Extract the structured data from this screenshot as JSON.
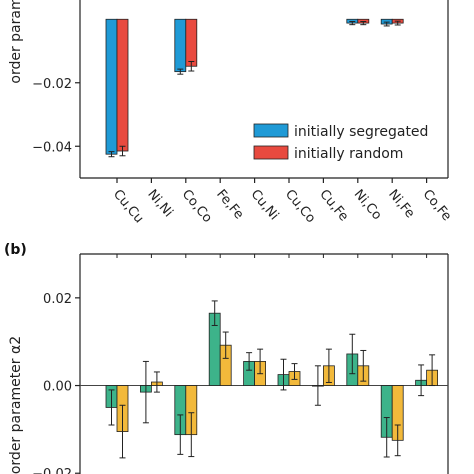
{
  "colors": {
    "segregated": "#1f9ad6",
    "random": "#e84a3f",
    "teal": "#3db38a",
    "orange": "#f2b93b",
    "axis": "#222222"
  },
  "chart_data": [
    {
      "type": "bar",
      "panel": "",
      "categories": [
        "Cu,Cu",
        "Ni,Ni",
        "Co,Co",
        "Fe,Fe",
        "Cu,Ni",
        "Cu,Co",
        "Cu,Fe",
        "Ni,Co",
        "Ni,Fe",
        "Co,Fe"
      ],
      "ylabel": "order param",
      "ylim": [
        -0.05,
        0.013
      ],
      "yticks": [
        -0.04,
        -0.02
      ],
      "ytick_labels": [
        "−0.04",
        "−0.02"
      ],
      "series": [
        {
          "name": "initially segregated",
          "color_key": "segregated",
          "values": [
            -0.0425,
            null,
            -0.0165,
            null,
            null,
            null,
            null,
            -0.0012,
            -0.0015,
            null
          ],
          "errors": [
            0.0008,
            null,
            0.0008,
            null,
            null,
            null,
            null,
            0.0005,
            0.0006,
            null
          ]
        },
        {
          "name": "initially random",
          "color_key": "random",
          "values": [
            -0.0415,
            null,
            -0.0148,
            null,
            null,
            null,
            null,
            -0.0012,
            -0.0012,
            null
          ],
          "errors": [
            0.0015,
            null,
            0.0015,
            null,
            null,
            null,
            null,
            0.0005,
            0.0006,
            null
          ]
        }
      ],
      "legend": "bottom-right"
    },
    {
      "type": "bar",
      "panel": "(b)",
      "categories": [
        "Cu,Cu",
        "Ni,Ni",
        "Co,Co",
        "Fe,Fe",
        "Cu,Ni",
        "Cu,Co",
        "Cu,Fe",
        "Ni,Co",
        "Ni,Fe",
        "Co,Fe"
      ],
      "ylabel": "order parameter α2",
      "ylim": [
        -0.022,
        0.03
      ],
      "yticks": [
        0.02,
        0.0,
        -0.02
      ],
      "ytick_labels": [
        "0.02",
        "0.00",
        "−0.02"
      ],
      "series": [
        {
          "color_key": "teal",
          "values": [
            -0.005,
            -0.0015,
            -0.0112,
            0.0165,
            0.0055,
            0.0025,
            0.0,
            0.0072,
            -0.0118,
            0.0012
          ],
          "errors": [
            0.004,
            0.007,
            0.0045,
            0.0028,
            0.002,
            0.0035,
            0.0045,
            0.0045,
            0.0045,
            0.0035
          ]
        },
        {
          "color_key": "orange",
          "values": [
            -0.0105,
            0.0008,
            -0.0112,
            0.0092,
            0.0055,
            0.0032,
            0.0045,
            0.0045,
            -0.0125,
            0.0035
          ],
          "errors": [
            0.006,
            0.0023,
            0.005,
            0.003,
            0.0028,
            0.0018,
            0.0038,
            0.0035,
            0.0035,
            0.0035
          ]
        }
      ]
    }
  ]
}
